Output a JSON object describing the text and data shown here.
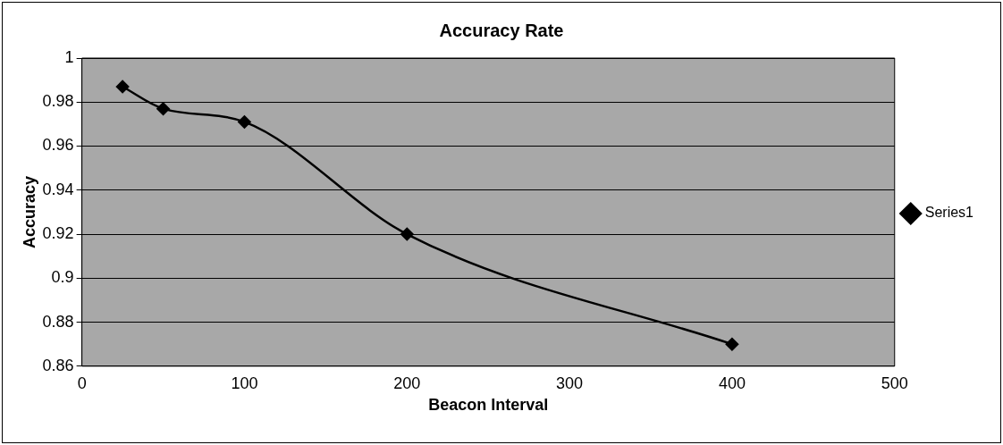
{
  "chart_data": {
    "type": "line",
    "title": "Accuracy Rate",
    "xlabel": "Beacon Interval",
    "ylabel": "Accuracy",
    "x": [
      25,
      50,
      100,
      200,
      400
    ],
    "series": [
      {
        "name": "Series1",
        "color": "#000000",
        "values": [
          0.987,
          0.977,
          0.971,
          0.92,
          0.87
        ]
      }
    ],
    "xlim": [
      0,
      500
    ],
    "xticks": [
      0,
      100,
      200,
      300,
      400,
      500
    ],
    "ylim": [
      0.86,
      1
    ],
    "yticks": [
      0.86,
      0.88,
      0.9,
      0.92,
      0.94,
      0.96,
      0.98,
      1
    ],
    "grid": "y",
    "legend": "right",
    "marker": "diamond",
    "line_style": "solid"
  }
}
